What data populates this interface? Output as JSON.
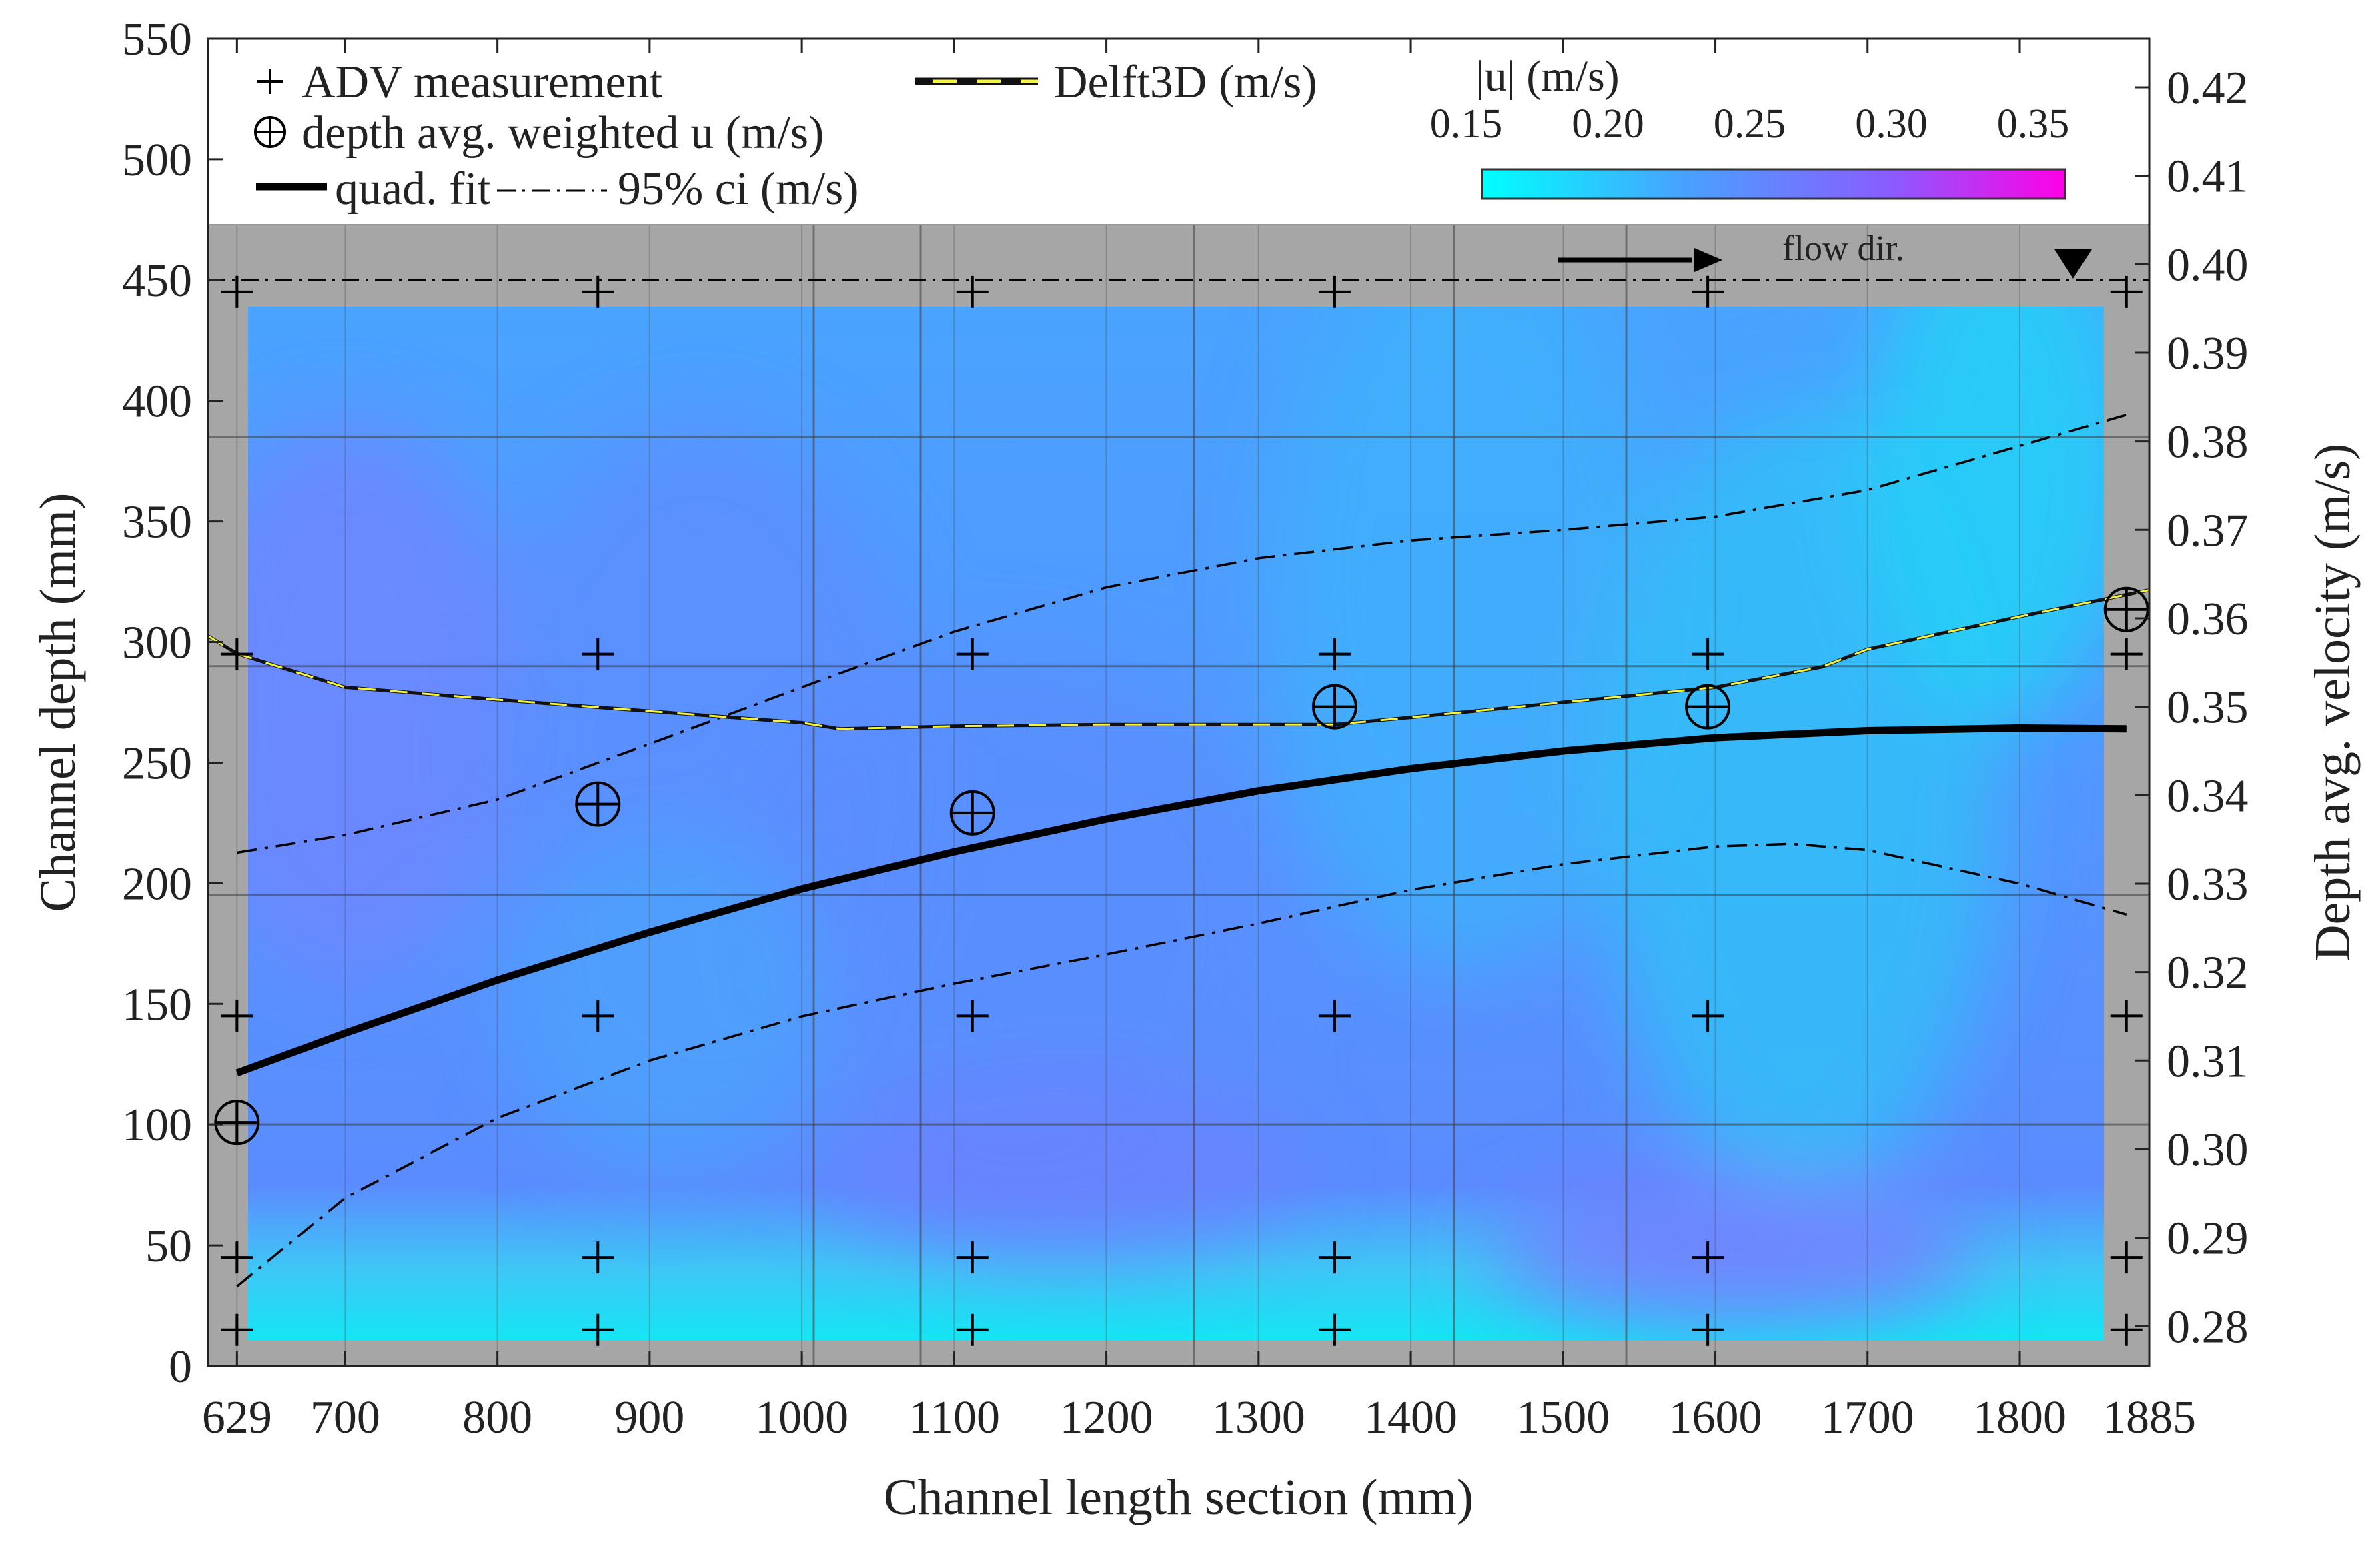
{
  "chart_data": {
    "type": "scatter",
    "title": "",
    "xlabel": "Channel length section (mm)",
    "ylabel": "Channel depth (mm)",
    "y2label": "Depth avg. velocity (m/s)",
    "xlim": [
      610,
      1885
    ],
    "ylim": [
      0,
      550
    ],
    "y2lim": [
      0.2755,
      0.4255
    ],
    "x_ticks": [
      629,
      700,
      800,
      900,
      1000,
      1100,
      1200,
      1300,
      1400,
      1500,
      1600,
      1700,
      1800,
      1885
    ],
    "y_ticks": [
      0,
      50,
      100,
      150,
      200,
      250,
      300,
      350,
      400,
      450,
      500,
      550
    ],
    "y2_ticks": [
      0.28,
      0.29,
      0.3,
      0.31,
      0.32,
      0.33,
      0.34,
      0.35,
      0.36,
      0.37,
      0.38,
      0.39,
      0.4,
      0.41,
      0.42
    ],
    "y2_tick_labels": [
      "0.28",
      "0.29",
      "0.30",
      "0.31",
      "0.32",
      "0.33",
      "0.34",
      "0.35",
      "0.36",
      "0.37",
      "0.38",
      "0.39",
      "0.40",
      "0.41",
      "0.42"
    ],
    "water_surface_depth": 450,
    "grid": true,
    "legend": {
      "placement": "top",
      "entries": [
        {
          "marker": "plus",
          "label": "ADV measurement"
        },
        {
          "marker": "circle-plus",
          "label": "depth avg. weighted u (m/s)"
        },
        {
          "marker": "thick-line",
          "label": "quad. fit"
        },
        {
          "marker": "dash-dot",
          "label": "95% ci (m/s)"
        },
        {
          "marker": "yellow-black-dashed",
          "label": "Delft3D (m/s)"
        }
      ]
    },
    "colorbar": {
      "title": "|u| (m/s)",
      "ticks": [
        0.15,
        0.2,
        0.25,
        0.3,
        0.35
      ],
      "tick_labels": [
        "0.15",
        "0.20",
        "0.25",
        "0.30",
        "0.35"
      ],
      "range": [
        0.15,
        0.35
      ],
      "colors": [
        "#00ffff",
        "#4aa0ff",
        "#8a5cff",
        "#ff00e6"
      ]
    },
    "annotation": "flow dir.",
    "adv_measurements": {
      "x": [
        629,
        866,
        1112,
        1350,
        1595,
        1870
      ],
      "depths": [
        15,
        45,
        145,
        295,
        445
      ]
    },
    "depth_avg_velocity": {
      "x": [
        629,
        866,
        1112,
        1350,
        1595,
        1870
      ],
      "y": [
        0.303,
        0.339,
        0.338,
        0.35,
        0.35,
        0.361
      ]
    },
    "quad_fit": {
      "x": [
        629,
        700,
        800,
        900,
        1000,
        1100,
        1200,
        1300,
        1400,
        1500,
        1600,
        1700,
        1800,
        1870
      ],
      "y": [
        0.3086,
        0.3131,
        0.3191,
        0.3245,
        0.3294,
        0.3336,
        0.3373,
        0.3405,
        0.343,
        0.345,
        0.3465,
        0.3473,
        0.3476,
        0.3475
      ]
    },
    "ci_upper": {
      "x": [
        629,
        700,
        800,
        900,
        1000,
        1100,
        1200,
        1300,
        1400,
        1500,
        1600,
        1700,
        1800,
        1870
      ],
      "y": [
        0.3335,
        0.3355,
        0.3395,
        0.3458,
        0.3522,
        0.3585,
        0.3635,
        0.3668,
        0.3688,
        0.37,
        0.3715,
        0.3745,
        0.3795,
        0.383
      ]
    },
    "ci_lower": {
      "x": [
        629,
        700,
        800,
        900,
        1000,
        1100,
        1200,
        1300,
        1400,
        1500,
        1600,
        1650,
        1700,
        1800,
        1870
      ],
      "y": [
        0.2845,
        0.2945,
        0.3035,
        0.31,
        0.315,
        0.3187,
        0.322,
        0.3255,
        0.3293,
        0.3322,
        0.3342,
        0.3345,
        0.3338,
        0.33,
        0.3265
      ]
    },
    "delft3d": {
      "x": [
        610,
        629,
        700,
        800,
        900,
        1000,
        1025,
        1100,
        1200,
        1300,
        1350,
        1400,
        1500,
        1600,
        1670,
        1700,
        1800,
        1885
      ],
      "y": [
        0.358,
        0.356,
        0.3522,
        0.3508,
        0.3495,
        0.3482,
        0.3475,
        0.3478,
        0.348,
        0.348,
        0.348,
        0.3488,
        0.3505,
        0.3522,
        0.3545,
        0.3565,
        0.3602,
        0.3632
      ]
    }
  }
}
